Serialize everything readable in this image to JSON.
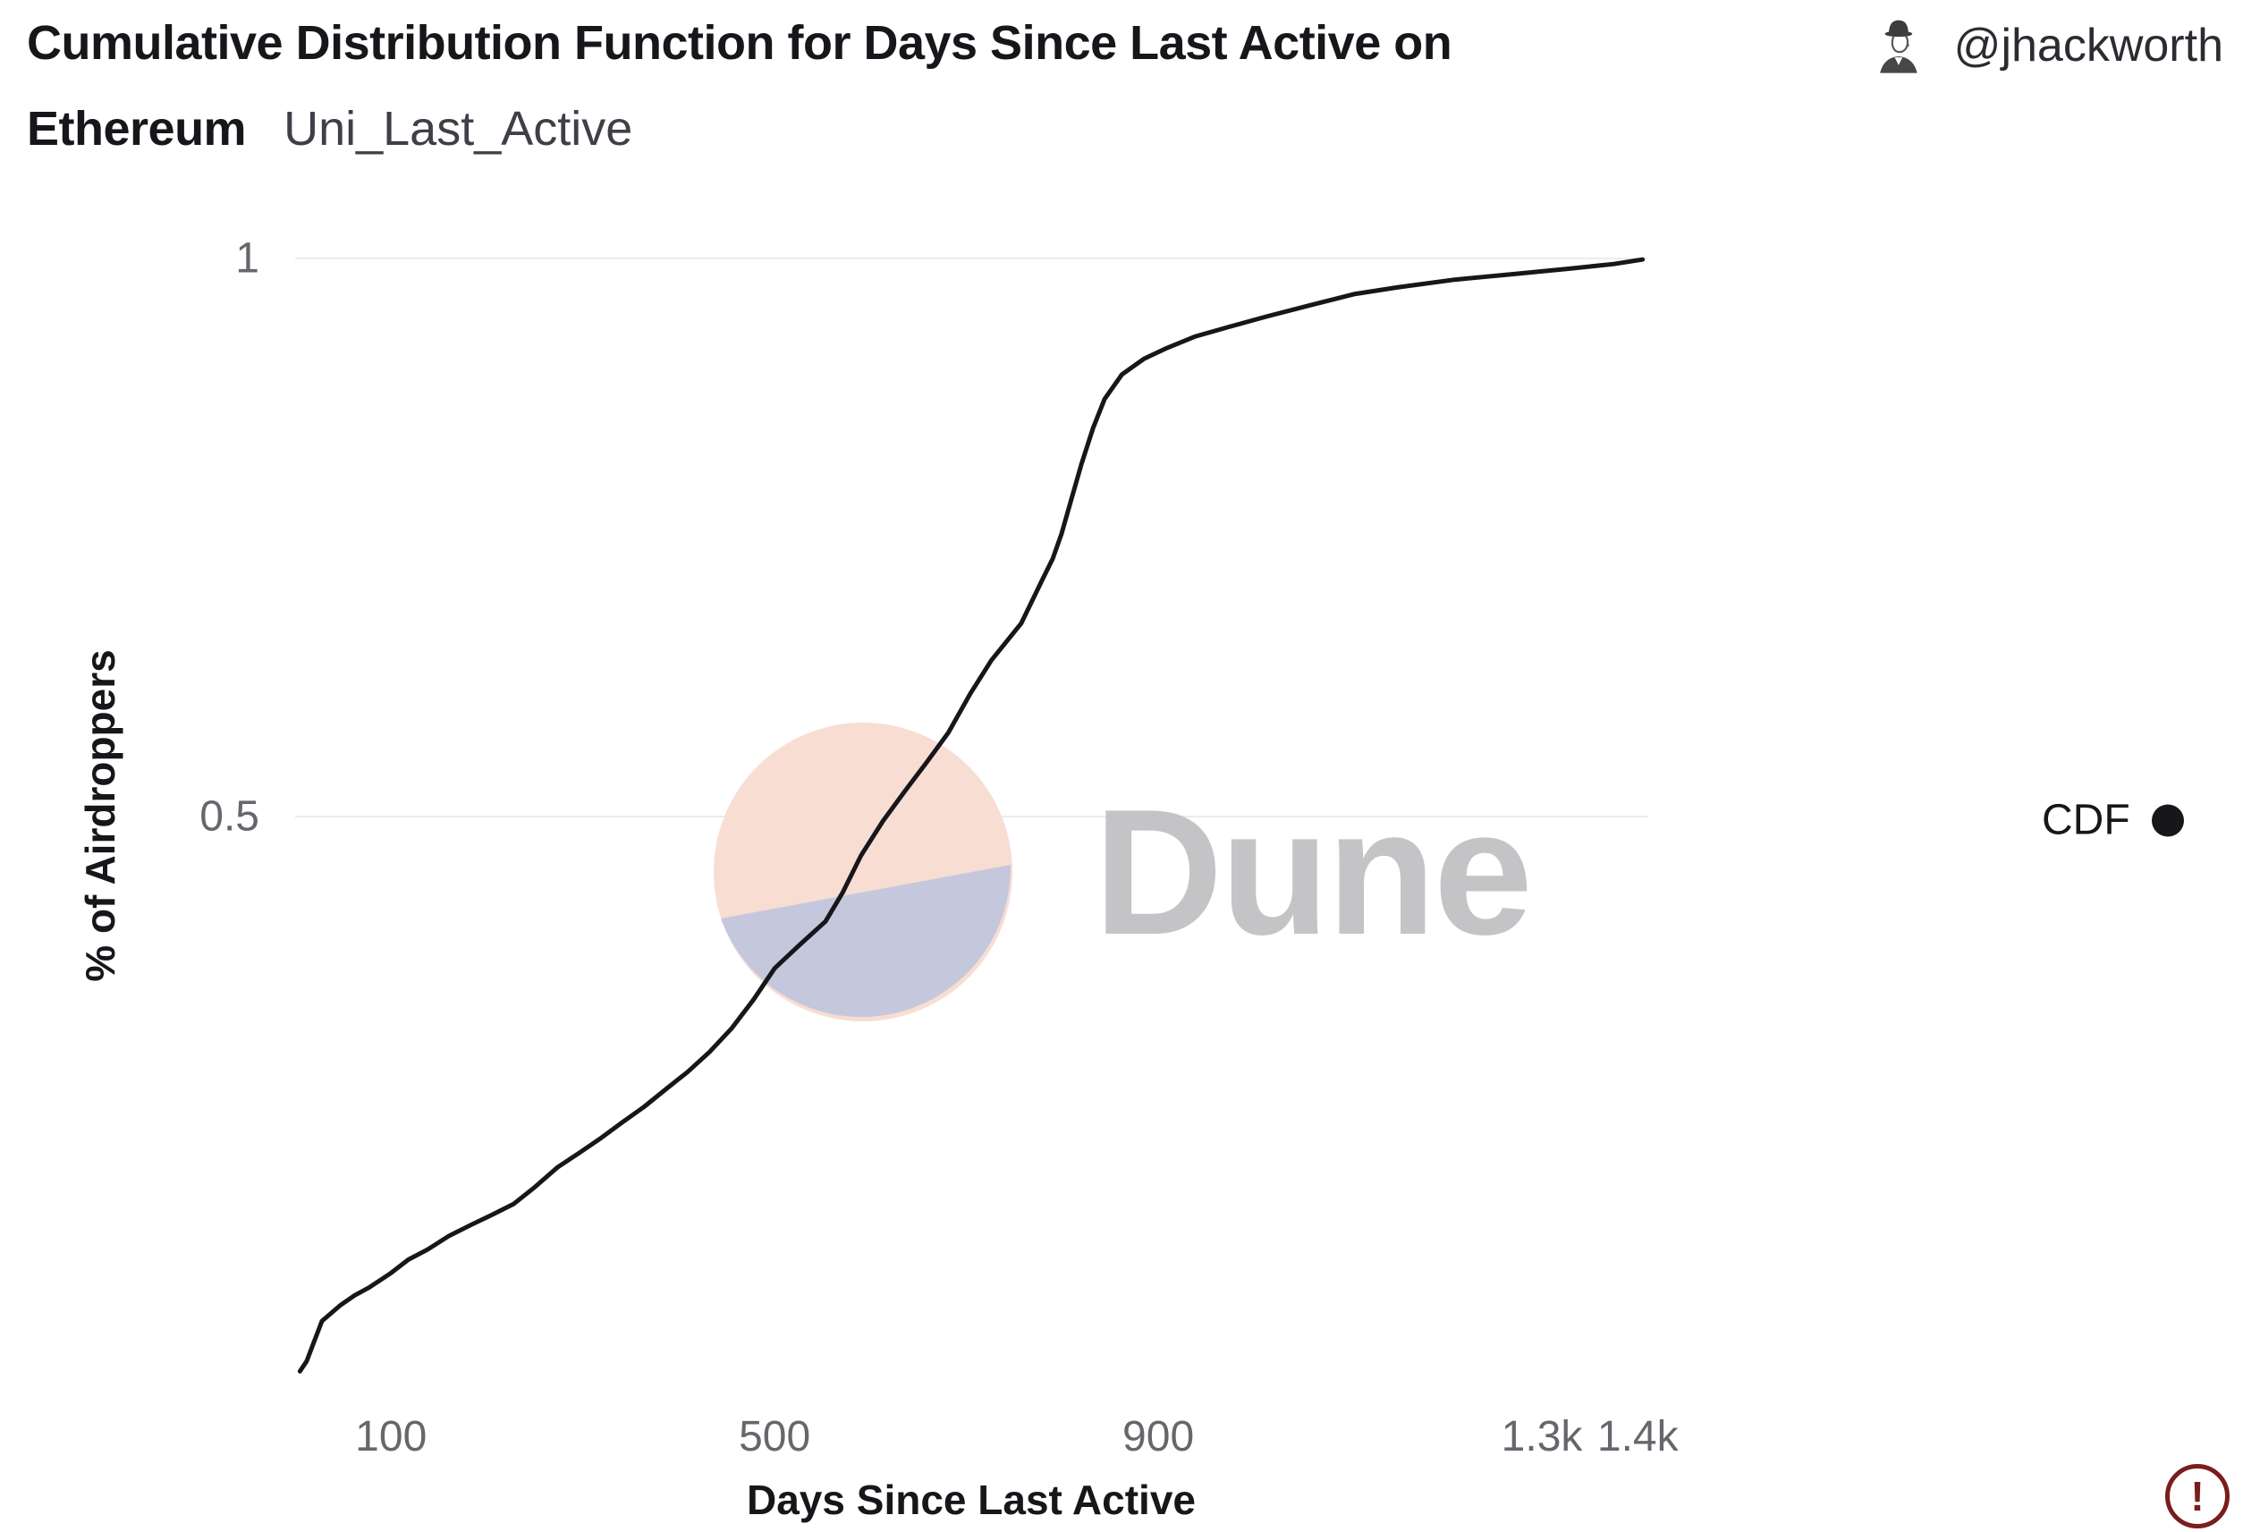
{
  "header": {
    "title_line1": "Cumulative Distribution Function for Days Since Last Active on",
    "title_line2": "Ethereum",
    "subtitle": "Uni_Last_Active",
    "author_handle": "@jhackworth"
  },
  "watermark": {
    "text": "Dune",
    "text_color": "#c4c4c7",
    "circle_top_color": "#f8ddd3",
    "circle_bottom_color": "#c5c8dd"
  },
  "footer": {
    "warning_glyph": "!",
    "warning_color": "#7a1d1d"
  },
  "chart_data": {
    "type": "line",
    "title": "Cumulative Distribution Function for Days Since Last Active on Ethereum",
    "subtitle": "Uni_Last_Active",
    "xlabel": "Days Since Last Active",
    "ylabel": "% of Airdroppers",
    "xlim": [
      0,
      1410
    ],
    "ylim": [
      0,
      1
    ],
    "grid": "horizontal-only",
    "legend_position": "right-middle",
    "x_ticks": [
      {
        "value": 100,
        "label": "100"
      },
      {
        "value": 500,
        "label": "500"
      },
      {
        "value": 900,
        "label": "900"
      },
      {
        "value": 1300,
        "label": "1.3k"
      },
      {
        "value": 1400,
        "label": "1.4k"
      }
    ],
    "y_ticks": [
      {
        "value": 1,
        "label": "1"
      },
      {
        "value": 0.5,
        "label": "0.5"
      }
    ],
    "series": [
      {
        "name": "CDF",
        "color": "#17171b",
        "points": [
          [
            5,
            0.003
          ],
          [
            12,
            0.012
          ],
          [
            20,
            0.03
          ],
          [
            28,
            0.048
          ],
          [
            47,
            0.062
          ],
          [
            62,
            0.071
          ],
          [
            77,
            0.078
          ],
          [
            100,
            0.091
          ],
          [
            118,
            0.103
          ],
          [
            138,
            0.112
          ],
          [
            160,
            0.124
          ],
          [
            183,
            0.134
          ],
          [
            205,
            0.143
          ],
          [
            228,
            0.153
          ],
          [
            250,
            0.168
          ],
          [
            274,
            0.186
          ],
          [
            297,
            0.199
          ],
          [
            319,
            0.212
          ],
          [
            341,
            0.226
          ],
          [
            364,
            0.24
          ],
          [
            387,
            0.256
          ],
          [
            409,
            0.271
          ],
          [
            432,
            0.289
          ],
          [
            455,
            0.31
          ],
          [
            478,
            0.336
          ],
          [
            500,
            0.364
          ],
          [
            526,
            0.385
          ],
          [
            553,
            0.406
          ],
          [
            571,
            0.432
          ],
          [
            590,
            0.465
          ],
          [
            613,
            0.496
          ],
          [
            636,
            0.523
          ],
          [
            658,
            0.548
          ],
          [
            681,
            0.575
          ],
          [
            704,
            0.61
          ],
          [
            726,
            0.64
          ],
          [
            757,
            0.673
          ],
          [
            779,
            0.712
          ],
          [
            790,
            0.731
          ],
          [
            799,
            0.753
          ],
          [
            809,
            0.783
          ],
          [
            820,
            0.816
          ],
          [
            832,
            0.848
          ],
          [
            844,
            0.874
          ],
          [
            862,
            0.896
          ],
          [
            885,
            0.91
          ],
          [
            907,
            0.919
          ],
          [
            938,
            0.93
          ],
          [
            975,
            0.939
          ],
          [
            1013,
            0.948
          ],
          [
            1058,
            0.958
          ],
          [
            1104,
            0.968
          ],
          [
            1149,
            0.974
          ],
          [
            1209,
            0.981
          ],
          [
            1270,
            0.986
          ],
          [
            1330,
            0.991
          ],
          [
            1375,
            0.995
          ],
          [
            1405,
            0.999
          ]
        ]
      }
    ]
  }
}
